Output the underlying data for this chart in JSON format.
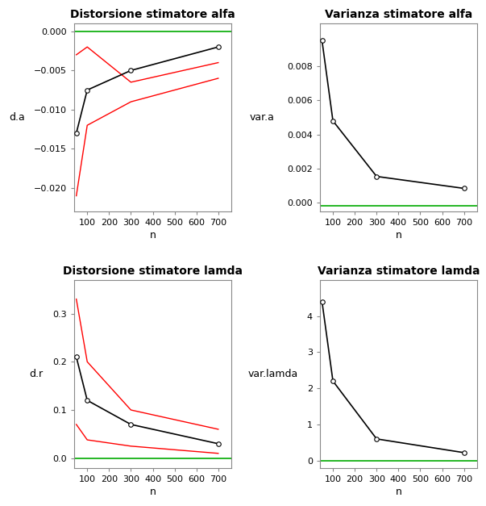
{
  "n_values": [
    50,
    100,
    300,
    700
  ],
  "plot1": {
    "title": "Distorsione stimatore alfa",
    "ylabel": "d.a",
    "xlabel": "n",
    "black_line": [
      -0.013,
      -0.0075,
      -0.005,
      -0.002
    ],
    "red_upper": [
      -0.003,
      -0.002,
      -0.0065,
      -0.004
    ],
    "red_lower": [
      -0.021,
      -0.012,
      -0.009,
      -0.006
    ],
    "green_y": 0.0,
    "ylim": [
      -0.023,
      0.001
    ],
    "yticks": [
      0.0,
      -0.005,
      -0.01,
      -0.015,
      -0.02
    ],
    "xticks": [
      100,
      200,
      300,
      400,
      500,
      600,
      700
    ],
    "xlim": [
      40,
      760
    ]
  },
  "plot2": {
    "title": "Varianza stimatore alfa",
    "ylabel": "var.a",
    "xlabel": "n",
    "black_line": [
      0.0095,
      0.0048,
      0.00155,
      0.00085
    ],
    "green_y": -0.00015,
    "ylim": [
      -0.0005,
      0.0105
    ],
    "yticks": [
      0.0,
      0.002,
      0.004,
      0.006,
      0.008
    ],
    "xticks": [
      100,
      200,
      300,
      400,
      500,
      600,
      700
    ],
    "xlim": [
      40,
      760
    ]
  },
  "plot3": {
    "title": "Distorsione stimatore lamda",
    "ylabel": "d.r",
    "xlabel": "n",
    "black_line": [
      0.21,
      0.12,
      0.07,
      0.03
    ],
    "red_upper": [
      0.33,
      0.2,
      0.1,
      0.06
    ],
    "red_lower": [
      0.07,
      0.038,
      0.025,
      0.01
    ],
    "green_y": 0.0,
    "ylim": [
      -0.02,
      0.37
    ],
    "yticks": [
      0.0,
      0.1,
      0.2,
      0.3
    ],
    "xticks": [
      100,
      200,
      300,
      400,
      500,
      600,
      700
    ],
    "xlim": [
      40,
      760
    ]
  },
  "plot4": {
    "title": "Varianza stimatore lamda",
    "ylabel": "var.lamda",
    "xlabel": "n",
    "black_line": [
      4.4,
      2.2,
      0.6,
      0.22
    ],
    "green_y": 0.0,
    "ylim": [
      -0.2,
      5.0
    ],
    "yticks": [
      0,
      1,
      2,
      3,
      4
    ],
    "xticks": [
      100,
      200,
      300,
      400,
      500,
      600,
      700
    ],
    "xlim": [
      40,
      760
    ]
  },
  "line_color_black": "#000000",
  "line_color_red": "#FF0000",
  "line_color_green": "#00AA00",
  "bg_color": "#FFFFFF",
  "panel_bg": "#FFFFFF",
  "title_fontsize": 10,
  "axis_label_fontsize": 9,
  "tick_fontsize": 8
}
